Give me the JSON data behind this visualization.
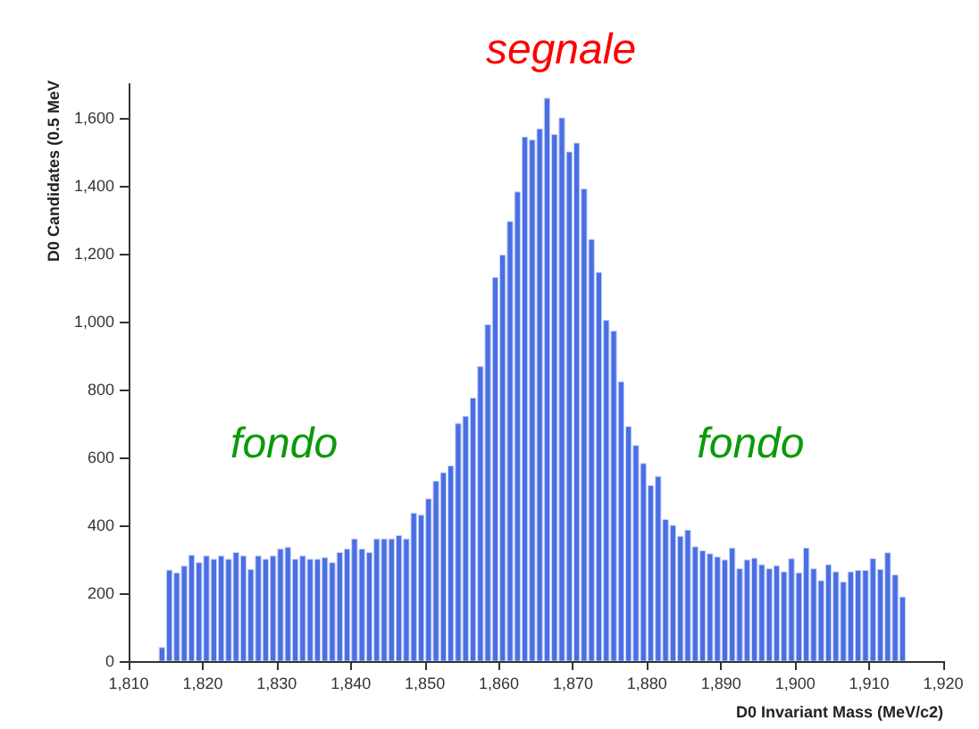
{
  "chart_data": {
    "type": "histogram",
    "xlabel": "D0 Invariant Mass (MeV/c2)",
    "ylabel": "D0 Candidates (0.5 MeV",
    "color": "#4a6fe3",
    "bins": [
      1814,
      1815,
      1816,
      1817,
      1818,
      1819,
      1820,
      1821,
      1822,
      1823,
      1824,
      1825,
      1826,
      1827,
      1828,
      1829,
      1830,
      1831,
      1832,
      1833,
      1834,
      1835,
      1836,
      1837,
      1838,
      1839,
      1840,
      1841,
      1842,
      1843,
      1844,
      1845,
      1846,
      1847,
      1848,
      1849,
      1850,
      1851,
      1852,
      1853,
      1854,
      1855,
      1856,
      1857,
      1858,
      1859,
      1860,
      1861,
      1862,
      1863,
      1864,
      1865,
      1866,
      1867,
      1868,
      1869,
      1870,
      1871,
      1872,
      1873,
      1874,
      1875,
      1876,
      1877,
      1878,
      1879,
      1880,
      1881,
      1882,
      1883,
      1884,
      1885,
      1886,
      1887,
      1888,
      1889,
      1890,
      1891,
      1892,
      1893,
      1894,
      1895,
      1896,
      1897,
      1898,
      1899,
      1900,
      1901,
      1902,
      1903,
      1904,
      1905,
      1906,
      1907,
      1908,
      1909,
      1910,
      1911,
      1912,
      1913,
      1914,
      1915
    ],
    "values": [
      40,
      268,
      260,
      280,
      312,
      290,
      310,
      300,
      310,
      300,
      320,
      310,
      270,
      310,
      300,
      310,
      330,
      335,
      300,
      310,
      300,
      300,
      305,
      290,
      320,
      330,
      360,
      330,
      320,
      360,
      360,
      360,
      370,
      360,
      436,
      430,
      478,
      530,
      555,
      575,
      700,
      721,
      775,
      868,
      991,
      1130,
      1196,
      1295,
      1382,
      1544,
      1535,
      1568,
      1658,
      1551,
      1600,
      1500,
      1526,
      1391,
      1242,
      1145,
      1004,
      972,
      823,
      691,
      635,
      582,
      517,
      544,
      417,
      400,
      368,
      386,
      337,
      325,
      316,
      307,
      298,
      333,
      272,
      298,
      303,
      284,
      272,
      281,
      263,
      302,
      260,
      333,
      272,
      237,
      284,
      263,
      233,
      263,
      267,
      267,
      302,
      270,
      319,
      254,
      189
    ],
    "xlim": [
      1810,
      1920
    ],
    "xticks": [
      {
        "value": 1810,
        "label": "1,810"
      },
      {
        "value": 1820,
        "label": "1,820"
      },
      {
        "value": 1830,
        "label": "1,830"
      },
      {
        "value": 1840,
        "label": "1,840"
      },
      {
        "value": 1850,
        "label": "1,850"
      },
      {
        "value": 1860,
        "label": "1,860"
      },
      {
        "value": 1870,
        "label": "1,870"
      },
      {
        "value": 1880,
        "label": "1,880"
      },
      {
        "value": 1890,
        "label": "1,890"
      },
      {
        "value": 1900,
        "label": "1,900"
      },
      {
        "value": 1910,
        "label": "1,910"
      },
      {
        "value": 1920,
        "label": "1,920"
      }
    ],
    "ylim": [
      0,
      1700
    ],
    "yticks": [
      0,
      200,
      400,
      600,
      800,
      {
        "value": 1000,
        "label": "1,000"
      },
      {
        "value": 1200,
        "label": "1,200"
      },
      {
        "value": 1400,
        "label": "1,400"
      },
      {
        "value": 1600,
        "label": "1,600"
      }
    ],
    "annotations": [
      "segnale",
      "fondo",
      "fondo"
    ],
    "grid": false
  }
}
